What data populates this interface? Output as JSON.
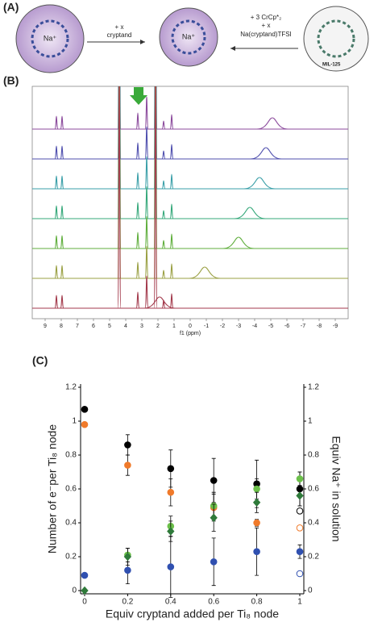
{
  "panel_a": {
    "label": "(A)",
    "left_ion": "Na⁺",
    "middle_ion": "Na⁺",
    "arrow1_top": "+ x",
    "arrow1_bottom": "cryptand",
    "arrow2_line1": "+ 3 CrCp*₂",
    "arrow2_line2": "+ x",
    "arrow2_line3": "Na(cryptand)TFSI",
    "right_name": "MIL-125"
  },
  "chart_data": [
    {
      "type": "spectrum",
      "label": "(B)",
      "xlabel": "f1 (ppm)",
      "xlim": [
        9.8,
        -9.8
      ],
      "xticks": [
        9,
        8,
        7,
        6,
        5,
        4,
        3,
        2,
        1,
        0,
        -1,
        -2,
        -3,
        -4,
        -5,
        -6,
        -7,
        -8,
        -9
      ],
      "series": [
        {
          "color": "#8b4a9c",
          "values": [
            8.3,
            7.95,
            4.4,
            3.25,
            2.7,
            2.15,
            1.65,
            1.15,
            -5.1
          ]
        },
        {
          "color": "#4f4fae",
          "values": [
            8.3,
            7.95,
            4.4,
            3.25,
            2.7,
            2.15,
            1.65,
            1.15,
            -4.7
          ]
        },
        {
          "color": "#3a9fa8",
          "values": [
            8.3,
            7.95,
            4.4,
            3.25,
            2.7,
            2.15,
            1.65,
            1.15,
            -4.3
          ]
        },
        {
          "color": "#35a87a",
          "values": [
            8.3,
            7.95,
            4.4,
            3.25,
            2.7,
            2.15,
            1.65,
            1.15,
            -3.7
          ]
        },
        {
          "color": "#5fae3c",
          "values": [
            8.3,
            7.95,
            4.4,
            3.25,
            2.7,
            2.15,
            1.65,
            1.15,
            -3.0
          ]
        },
        {
          "color": "#9aa043",
          "values": [
            8.3,
            7.95,
            4.4,
            3.25,
            2.7,
            2.15,
            1.65,
            1.15,
            -0.9
          ]
        },
        {
          "color": "#a33a4c",
          "values": [
            8.3,
            7.95,
            4.4,
            3.25,
            2.7,
            2.15,
            1.65,
            1.15,
            1.9
          ]
        }
      ]
    },
    {
      "type": "scatter",
      "label": "(C)",
      "xlabel": "Equiv cryptand added per Ti₈ node",
      "ylabel": "Number of e⁻per Ti₈ node",
      "y2label": "Equiv Na⁺ in solution",
      "xlim": [
        0,
        1
      ],
      "ylim": [
        0,
        1.2
      ],
      "y2lim": [
        0,
        1.2
      ],
      "xticks": [
        0,
        0.2,
        0.4,
        0.6,
        0.8,
        1
      ],
      "yticks": [
        0,
        0.2,
        0.4,
        0.6,
        0.8,
        1,
        1.2
      ],
      "y2ticks": [
        0,
        0.2,
        0.4,
        0.6,
        0.8,
        1,
        1.2
      ],
      "series": [
        {
          "color": "#000000",
          "marker": "circle",
          "filled": true,
          "x": [
            0,
            0.2,
            0.4,
            0.6,
            0.8,
            1
          ],
          "values": [
            1.07,
            0.86,
            0.72,
            0.65,
            0.63,
            0.6
          ],
          "errors": [
            0,
            0.06,
            0.11,
            0.13,
            0.14,
            0.1
          ]
        },
        {
          "color": "#f07a2a",
          "marker": "circle",
          "filled": true,
          "x": [
            0,
            0.2,
            0.4,
            0.6,
            0.8
          ],
          "values": [
            0.98,
            0.74,
            0.58,
            0.49,
            0.4
          ],
          "errors": [
            0,
            0.06,
            0.08,
            0.08,
            0.02
          ]
        },
        {
          "color": "#3050b0",
          "marker": "circle",
          "filled": true,
          "x": [
            0,
            0.2,
            0.4,
            0.6,
            0.8,
            1
          ],
          "values": [
            0.09,
            0.12,
            0.14,
            0.17,
            0.23,
            0.23
          ],
          "errors": [
            0,
            0.08,
            0.18,
            0.14,
            0.14,
            0.04
          ]
        },
        {
          "color": "#6cc04a",
          "marker": "circle",
          "filled": true,
          "axis": "y2",
          "x": [
            0.2,
            0.4,
            0.6,
            0.8,
            1
          ],
          "values": [
            0.21,
            0.38,
            0.5,
            0.6,
            0.66
          ],
          "errors": [
            0.04,
            0.06,
            0.08,
            0.06,
            0.04
          ]
        },
        {
          "color": "#2f7a3a",
          "marker": "diamond",
          "filled": true,
          "axis": "y2",
          "x": [
            0,
            0.2,
            0.4,
            0.6,
            0.8,
            1
          ],
          "values": [
            0,
            0.2,
            0.35,
            0.43,
            0.52,
            0.56
          ],
          "errors": [
            0,
            0.05,
            0.06,
            0.08,
            0.06,
            0.06
          ]
        },
        {
          "color": "#000000",
          "marker": "circle",
          "filled": false,
          "x": [
            1
          ],
          "values": [
            0.47
          ],
          "errors": [
            0
          ]
        },
        {
          "color": "#f07a2a",
          "marker": "circle",
          "filled": false,
          "x": [
            1
          ],
          "values": [
            0.37
          ],
          "errors": [
            0
          ]
        },
        {
          "color": "#3050b0",
          "marker": "circle",
          "filled": false,
          "x": [
            1
          ],
          "values": [
            0.1
          ],
          "errors": [
            0
          ]
        }
      ]
    }
  ]
}
